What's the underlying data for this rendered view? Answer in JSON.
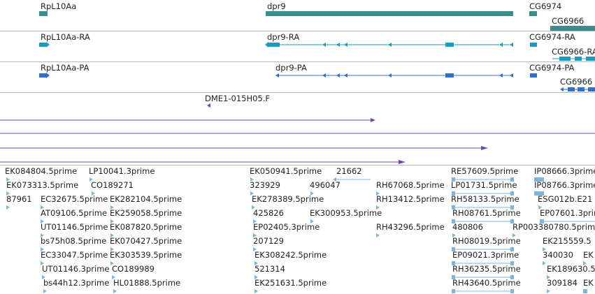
{
  "colors": {
    "gene": "#3a8c8c",
    "transcript": "#1b9bbf",
    "protein": "#2f6fce",
    "est": "#6f4aa8",
    "cdna": "#7eb6da"
  },
  "gene_track": {
    "labels": [
      "RpL10Aa",
      "dpr9",
      "CG6974",
      "CG6966"
    ]
  },
  "transcript_track": {
    "labels": [
      "RpL10Aa-RA",
      "dpr9-RA",
      "CG6974-RA",
      "CG6966-RA"
    ]
  },
  "protein_track": {
    "labels": [
      "RpL10Aa-PA",
      "dpr9-PA",
      "CG6974-PA",
      "CG6966"
    ]
  },
  "est_track": {
    "labels": [
      "DME1-015H05.F"
    ]
  },
  "cdna_track": {
    "labels": [
      "EK084804.5prime",
      "LP10041.3prime",
      "EK050941.5prime",
      "21662",
      "RE57609.5prime",
      "IP08666.3prime",
      "EK073313.5prime",
      "CO189271",
      "323929",
      "496047",
      "RH67068.5prime",
      "LP01731.5prime",
      "IP08766.3prime",
      "87961",
      "EC32675.5prime",
      "EK282104.5prime",
      "EK278389.5prime",
      "RH13412.5prime",
      "RH58133.5prime",
      "ESG012b.E21",
      "AT09106.5prime",
      "EK259058.5prime",
      "425826",
      "EK300953.5prime",
      "RH08761.5prime",
      "EP07601.3prime",
      "UT01146.5prime",
      "EK087820.5prime",
      "EP02405.3prime",
      "RH43296.5prime",
      "480806",
      "RP003380780.5prime",
      "bs75h08.5prime",
      "EK070427.5prime",
      "207129",
      "RH08019.5prime",
      "EK215559.5",
      "EC33047.5prime",
      "EK303539.5prime",
      "EK308242.5prime",
      "EP09021.3prime",
      "340030",
      "EK",
      "UT01146.3prime",
      "CO189989",
      "521314",
      "RH36235.5prime",
      "EK189630.5",
      "bs44h12.3prime",
      "HL01888.5prime",
      "EK251631.5prime",
      "RH43640.5prime",
      "309184",
      "EK"
    ]
  }
}
